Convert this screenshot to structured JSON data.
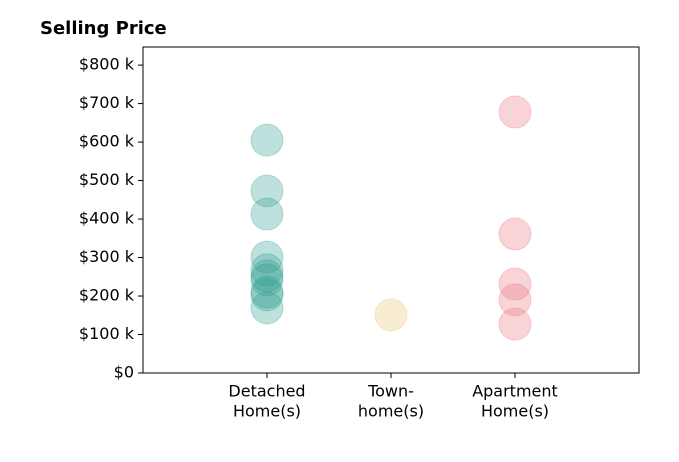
{
  "chart_data": {
    "type": "scatter",
    "title": "Selling Price",
    "categories": [
      [
        "Detached",
        "Home(s)"
      ],
      [
        "Town-",
        "home(s)"
      ],
      [
        "Apartment",
        "Home(s)"
      ]
    ],
    "colors": [
      "#2a9d8f",
      "#e9c46a",
      "#e76f7a"
    ],
    "values": [
      [
        605000,
        473000,
        413000,
        301000,
        268000,
        252000,
        242000,
        210000,
        203000,
        169000
      ],
      [
        151000
      ],
      [
        678000,
        361000,
        231000,
        190000,
        127000
      ]
    ],
    "xlim": [
      -1,
      3
    ],
    "ylim": [
      0,
      847000
    ],
    "yticks": [
      {
        "value": 0,
        "label": "$0"
      },
      {
        "value": 100000,
        "label": "$100 k"
      },
      {
        "value": 200000,
        "label": "$200 k"
      },
      {
        "value": 300000,
        "label": "$300 k"
      },
      {
        "value": 400000,
        "label": "$400 k"
      },
      {
        "value": 500000,
        "label": "$500 k"
      },
      {
        "value": 600000,
        "label": "$600 k"
      },
      {
        "value": 700000,
        "label": "$700 k"
      },
      {
        "value": 800000,
        "label": "$800 k"
      }
    ]
  }
}
